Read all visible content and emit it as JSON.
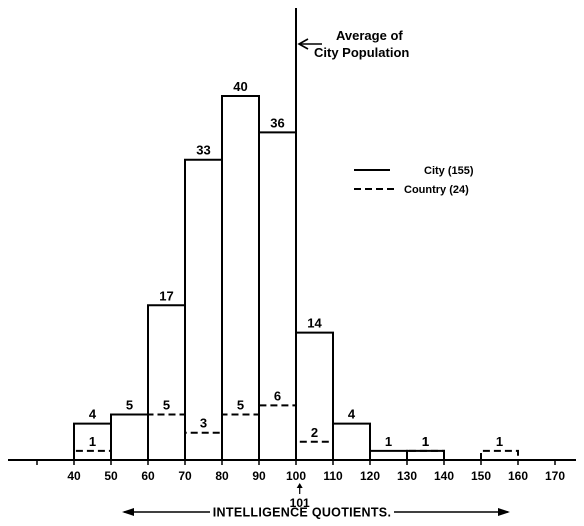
{
  "chart_data": {
    "type": "bar",
    "title": "",
    "xlabel": "INTELLIGENCE QUOTIENTS.",
    "ylabel": "",
    "x_ticks": [
      40,
      50,
      60,
      70,
      80,
      90,
      100,
      110,
      120,
      130,
      140,
      150,
      160,
      170
    ],
    "bin_width": 10,
    "ylim": [
      0,
      45
    ],
    "grid": false,
    "legend_position": "right",
    "annotation": {
      "text_line1": "Average of",
      "text_line2": "City Population",
      "x": 100
    },
    "extra_marker": {
      "label": "101",
      "x": 101
    },
    "series": [
      {
        "name": "City (155)",
        "style": "solid",
        "bins": [
          {
            "x": 40,
            "value": 4
          },
          {
            "x": 50,
            "value": 5
          },
          {
            "x": 60,
            "value": 17
          },
          {
            "x": 70,
            "value": 33
          },
          {
            "x": 80,
            "value": 40
          },
          {
            "x": 90,
            "value": 36
          },
          {
            "x": 100,
            "value": 14
          },
          {
            "x": 110,
            "value": 4
          },
          {
            "x": 120,
            "value": 1
          },
          {
            "x": 130,
            "value": 1
          }
        ]
      },
      {
        "name": "Country (24)",
        "style": "dashed",
        "bins": [
          {
            "x": 40,
            "value": 1
          },
          {
            "x": 60,
            "value": 5
          },
          {
            "x": 70,
            "value": 3
          },
          {
            "x": 80,
            "value": 5
          },
          {
            "x": 90,
            "value": 6
          },
          {
            "x": 100,
            "value": 2
          },
          {
            "x": 130,
            "value": 1
          },
          {
            "x": 150,
            "value": 1
          }
        ]
      }
    ]
  },
  "colors": {
    "ink": "#000000",
    "background": "#ffffff"
  }
}
